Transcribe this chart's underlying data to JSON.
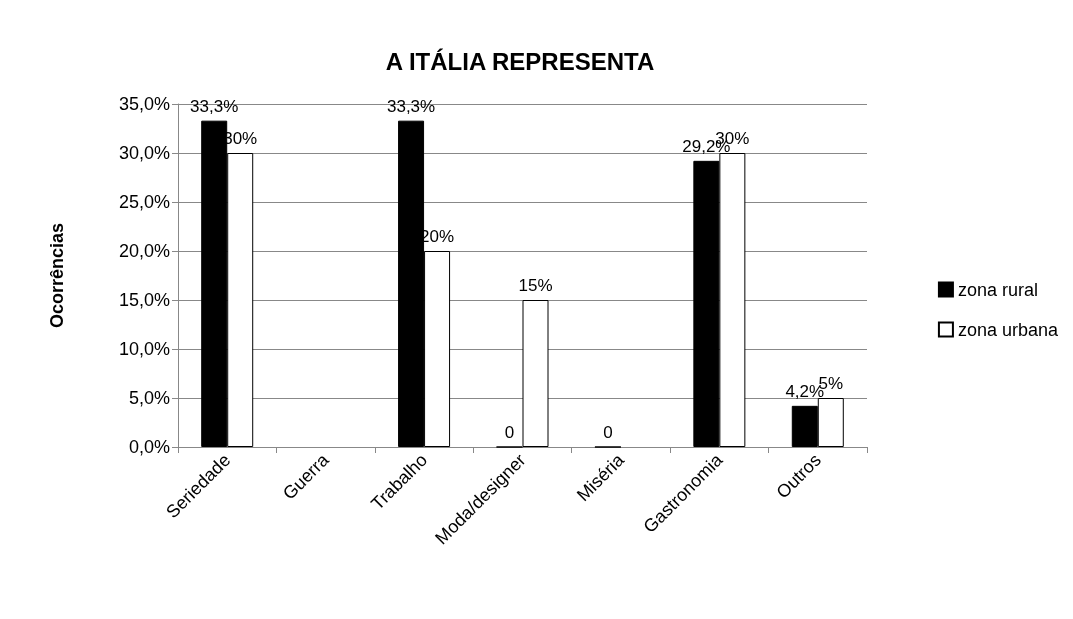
{
  "chart_data": {
    "type": "bar",
    "title": "A ITÁLIA REPRESENTA",
    "ylabel": "Ocorrências",
    "categories": [
      "Seriedade",
      "Guerra",
      "Trabalho",
      "Moda/designer",
      "Miséria",
      "Gastronomia",
      "Outros"
    ],
    "series": [
      {
        "name": "zona rural",
        "color": "#000000",
        "values": [
          33.3,
          null,
          33.3,
          0,
          0,
          29.2,
          4.2
        ],
        "value_labels": [
          "33,3%",
          null,
          "33,3%",
          "0",
          "0",
          "29,2%",
          "4,2%"
        ]
      },
      {
        "name": "zona urbana",
        "color": "#ffffff",
        "values": [
          30,
          null,
          20,
          15,
          null,
          30,
          5
        ],
        "value_labels": [
          "30%",
          null,
          "20%",
          "15%",
          null,
          "30%",
          "5%"
        ]
      }
    ],
    "ylim": [
      0,
      35
    ],
    "yticks": [
      {
        "value": 0,
        "label": "0,0%"
      },
      {
        "value": 5,
        "label": "5,0%"
      },
      {
        "value": 10,
        "label": "10,0%"
      },
      {
        "value": 15,
        "label": "15,0%"
      },
      {
        "value": 20,
        "label": "20,0%"
      },
      {
        "value": 25,
        "label": "25,0%"
      },
      {
        "value": 30,
        "label": "30,0%"
      },
      {
        "value": 35,
        "label": "35,0%"
      }
    ],
    "grid": "y",
    "legend": "right"
  }
}
